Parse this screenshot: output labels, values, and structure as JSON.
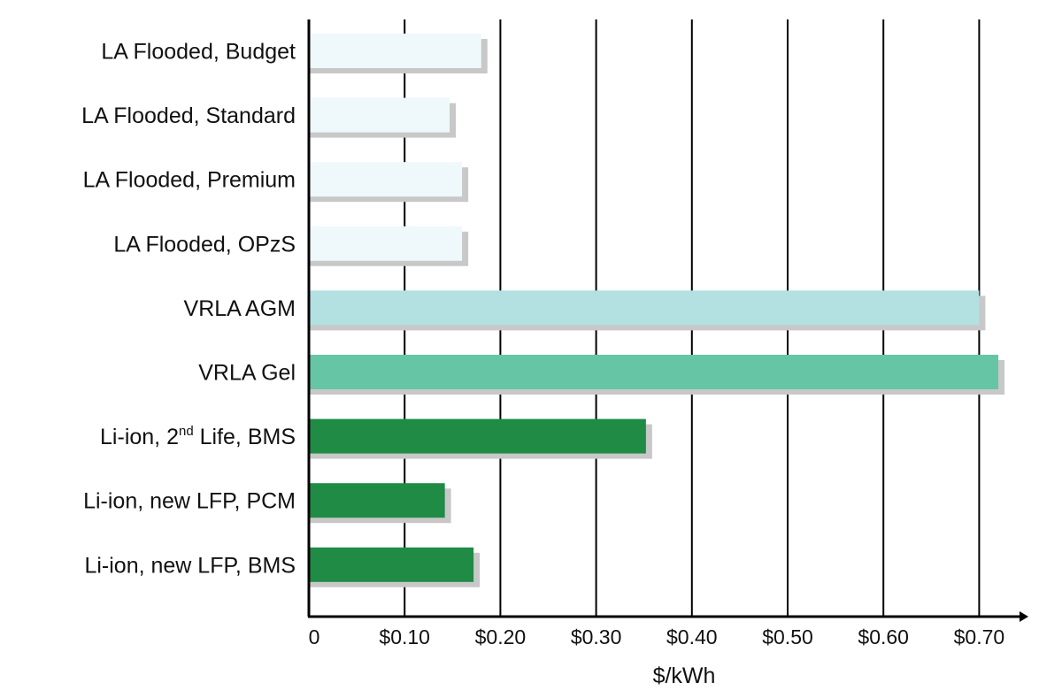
{
  "chart_data": {
    "type": "bar",
    "orientation": "horizontal",
    "categories": [
      "LA Flooded, Budget",
      "LA Flooded, Standard",
      "LA Flooded, Premium",
      "LA Flooded, OPzS",
      "VRLA AGM",
      "VRLA Gel",
      "Li-ion, 2nd Life, BMS",
      "Li-ion, new LFP, PCM",
      "Li-ion, new LFP, BMS"
    ],
    "category_parts": [
      {
        "pre": "LA Flooded, Budget",
        "sup": "",
        "post": ""
      },
      {
        "pre": "LA Flooded, Standard",
        "sup": "",
        "post": ""
      },
      {
        "pre": "LA Flooded, Premium",
        "sup": "",
        "post": ""
      },
      {
        "pre": "LA Flooded, OPzS",
        "sup": "",
        "post": ""
      },
      {
        "pre": "VRLA AGM",
        "sup": "",
        "post": ""
      },
      {
        "pre": "VRLA Gel",
        "sup": "",
        "post": ""
      },
      {
        "pre": "Li-ion, 2",
        "sup": "nd",
        "post": " Life, BMS"
      },
      {
        "pre": "Li-ion, new LFP, PCM",
        "sup": "",
        "post": ""
      },
      {
        "pre": "Li-ion, new LFP, BMS",
        "sup": "",
        "post": ""
      }
    ],
    "values": [
      0.18,
      0.147,
      0.16,
      0.16,
      0.7,
      0.72,
      0.352,
      0.142,
      0.172
    ],
    "colors": [
      "#eff8fb",
      "#eff8fb",
      "#eff8fb",
      "#eff8fb",
      "#b3e0e1",
      "#66c5a5",
      "#1f8b45",
      "#1f8b45",
      "#1f8b45"
    ],
    "shadow_color": "#c8c8c8",
    "xticks": [
      0,
      0.1,
      0.2,
      0.3,
      0.4,
      0.5,
      0.6,
      0.7
    ],
    "xtick_labels": [
      "0",
      "$0.10",
      "$0.20",
      "$0.30",
      "$0.40",
      "$0.50",
      "$0.60",
      "$0.70"
    ],
    "xlim": [
      0,
      0.75
    ],
    "xlabel": "$/kWh",
    "ylabel": "",
    "title": "",
    "grid": "vertical"
  }
}
